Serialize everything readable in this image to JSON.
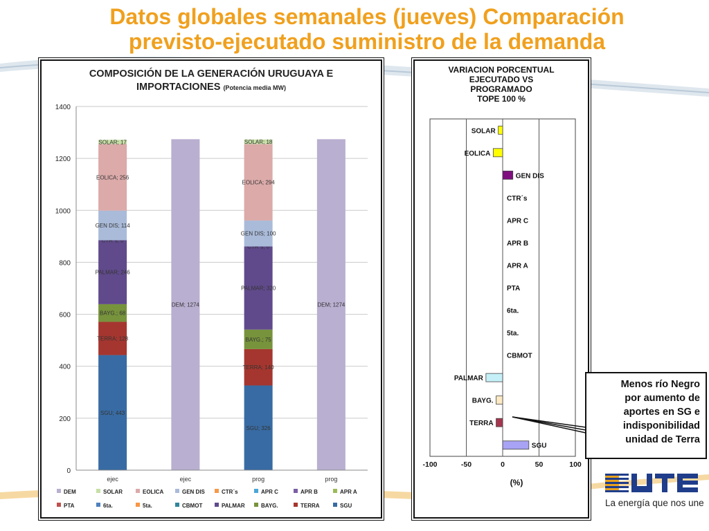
{
  "title": {
    "line1": "Datos globales semanales  (jueves) Comparación",
    "line2": "previsto-ejecutado suministro de la demanda"
  },
  "colors": {
    "title": "#f0a01e",
    "DEM": "#b9afd0",
    "SOLAR": "#c7dfa6",
    "EOLICA": "#dbaaa9",
    "GEN DIS": "#aabbd9",
    "CTR´s": "#f59a4a",
    "APR C": "#4aa7d6",
    "APR B": "#7a5ea6",
    "APR A": "#9bbb59",
    "PTA": "#c0504d",
    "6ta.": "#4f81bd",
    "5ta.": "#f79646",
    "CBMOT": "#31859c",
    "PALMAR": "#604a8b",
    "BAYG.": "#77933c",
    "TERRA": "#a5362f",
    "SGU": "#386ba3"
  },
  "chart_data": [
    {
      "type": "bar",
      "stacked": true,
      "title": "COMPOSICIÓN DE LA GENERACIÓN URUGUAYA E IMPORTACIONES",
      "title_line1": "COMPOSICIÓN DE LA GENERACIÓN URUGUAYA E",
      "title_line2": "IMPORTACIONES",
      "subtitle": "(Potencia media MW)",
      "ylim": [
        0,
        1400
      ],
      "yticks": [
        "0",
        "200",
        "400",
        "600",
        "800",
        "1000",
        "1200",
        "1400"
      ],
      "grid": true,
      "legend": "bottom",
      "categories": [
        "ejec",
        "ejec",
        "prog",
        "prog"
      ],
      "bars": [
        {
          "category": "ejec",
          "segments": [
            {
              "name": "SGU",
              "value": 443,
              "label": "SGU; 443"
            },
            {
              "name": "TERRA",
              "value": 128,
              "label": "TERRA; 128"
            },
            {
              "name": "BAYG.",
              "value": 68,
              "label": "BAYG.; 68"
            },
            {
              "name": "PALMAR",
              "value": 246,
              "label": "PALMAR; 246"
            },
            {
              "name": "CTR´s",
              "value": 0,
              "label": "CTR´s; 0"
            },
            {
              "name": "GEN DIS",
              "value": 114,
              "label": "GEN DIS; 114"
            },
            {
              "name": "EOLICA",
              "value": 256,
              "label": "EOLICA; 256"
            },
            {
              "name": "SOLAR",
              "value": 17,
              "label": "SOLAR; 17"
            }
          ]
        },
        {
          "category": "ejec",
          "segments": [
            {
              "name": "DEM",
              "value": 1274,
              "label": "DEM; 1274"
            }
          ]
        },
        {
          "category": "prog",
          "segments": [
            {
              "name": "SGU",
              "value": 326,
              "label": "SGU; 326"
            },
            {
              "name": "TERRA",
              "value": 140,
              "label": "TERRA; 140"
            },
            {
              "name": "BAYG.",
              "value": 75,
              "label": "BAYG.; 75"
            },
            {
              "name": "PALMAR",
              "value": 320,
              "label": "PALMAR; 320"
            },
            {
              "name": "CTR´s",
              "value": 0,
              "label": "CTR´s; 0"
            },
            {
              "name": "GEN DIS",
              "value": 100,
              "label": "GEN DIS; 100"
            },
            {
              "name": "EOLICA",
              "value": 294,
              "label": "EOLICA; 294"
            },
            {
              "name": "SOLAR",
              "value": 18,
              "label": "SOLAR; 18"
            }
          ]
        },
        {
          "category": "prog",
          "segments": [
            {
              "name": "DEM",
              "value": 1274,
              "label": "DEM; 1274"
            }
          ]
        }
      ],
      "legend_row1": [
        "DEM",
        "SOLAR",
        "EOLICA",
        "GEN DIS",
        "CTR´s",
        "APR C",
        "APR B",
        "APR A"
      ],
      "legend_row2": [
        "PTA",
        "6ta.",
        "5ta.",
        "CBMOT",
        "PALMAR",
        "BAYG.",
        "TERRA",
        "SGU"
      ]
    },
    {
      "type": "bar",
      "orientation": "horizontal",
      "title_lines": [
        "VARIACION  PORCENTUAL",
        "EJECUTADO  VS",
        "PROGRAMADO",
        "TOPE 100 %"
      ],
      "xlabel": "(%)",
      "xlim": [
        -100,
        100
      ],
      "xticks": [
        "-100",
        "-50",
        "0",
        "50",
        "100"
      ],
      "grid": true,
      "rows": [
        {
          "label": "SOLAR",
          "value": -6,
          "color": "#ffff00"
        },
        {
          "label": "EOLICA",
          "value": -13,
          "color": "#ffff00"
        },
        {
          "label": "GEN DIS",
          "value": 14,
          "color": "#7f0f7e"
        },
        {
          "label": "CTR´s",
          "value": 0,
          "color": "#f59a4a"
        },
        {
          "label": "APR C",
          "value": 0,
          "color": "#4aa7d6"
        },
        {
          "label": "APR B",
          "value": 0,
          "color": "#7a5ea6"
        },
        {
          "label": "APR A",
          "value": 0,
          "color": "#9bbb59"
        },
        {
          "label": "PTA",
          "value": 0,
          "color": "#c0504d"
        },
        {
          "label": "6ta.",
          "value": 0,
          "color": "#4f81bd"
        },
        {
          "label": "5ta.",
          "value": 0,
          "color": "#f79646"
        },
        {
          "label": "CBMOT",
          "value": 0,
          "color": "#31859c"
        },
        {
          "label": "PALMAR",
          "value": -23,
          "color": "#c6f0f8"
        },
        {
          "label": "BAYG.",
          "value": -9,
          "color": "#fde9c3"
        },
        {
          "label": "TERRA",
          "value": -9,
          "color": "#a5364e"
        },
        {
          "label": "SGU",
          "value": 36,
          "color": "#a8a3f5"
        }
      ]
    }
  ],
  "note": {
    "line1": "Menos río Negro",
    "line2": "por aumento de",
    "line3": "aportes en SG e",
    "line4": "indisponibilidad",
    "line5": "unidad de Terra"
  },
  "logo": {
    "name": "UTE",
    "tagline": "La energía que nos une"
  }
}
